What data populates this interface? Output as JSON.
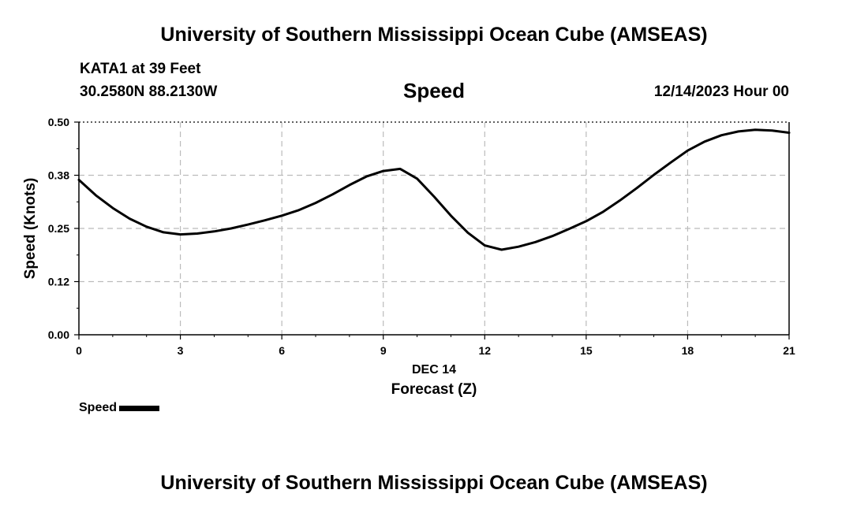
{
  "header": {
    "title": "University of Southern Mississippi Ocean Cube (AMSEAS)",
    "station": "KATA1 at 39 Feet",
    "coords": "30.2580N  88.2130W",
    "variable": "Speed",
    "datetime": "12/14/2023 Hour 00"
  },
  "footer": {
    "title": "University of Southern Mississippi Ocean Cube (AMSEAS)"
  },
  "chart_data": {
    "type": "line",
    "title": "Speed",
    "xlabel": "Forecast (Z)",
    "xlabel_date": "DEC 14",
    "ylabel": "Speed (Knots)",
    "xlim": [
      0,
      21
    ],
    "ylim": [
      0,
      0.5
    ],
    "xticks": [
      0,
      3,
      6,
      9,
      12,
      15,
      18,
      21
    ],
    "yticks": [
      0,
      0.125,
      0.25,
      0.375,
      0.5
    ],
    "ytick_labels": [
      "0.00",
      "0.12",
      "0.25",
      "0.38",
      "0.50"
    ],
    "grid": true,
    "legend": "bottom-left",
    "series": [
      {
        "name": "Speed",
        "color": "#000000",
        "x": [
          0,
          0.5,
          1,
          1.5,
          2,
          2.5,
          3,
          3.5,
          4,
          4.5,
          5,
          5.5,
          6,
          6.5,
          7,
          7.5,
          8,
          8.5,
          9,
          9.5,
          10,
          10.5,
          11,
          11.5,
          12,
          12.5,
          13,
          13.5,
          14,
          14.5,
          15,
          15.5,
          16,
          16.5,
          17,
          17.5,
          18,
          18.5,
          19,
          19.5,
          20,
          20.5,
          21
        ],
        "y": [
          0.364,
          0.328,
          0.298,
          0.273,
          0.254,
          0.241,
          0.236,
          0.238,
          0.243,
          0.25,
          0.259,
          0.269,
          0.28,
          0.293,
          0.31,
          0.33,
          0.352,
          0.372,
          0.385,
          0.39,
          0.367,
          0.325,
          0.28,
          0.24,
          0.21,
          0.2,
          0.207,
          0.218,
          0.232,
          0.249,
          0.267,
          0.289,
          0.316,
          0.345,
          0.376,
          0.405,
          0.433,
          0.454,
          0.469,
          0.478,
          0.482,
          0.48,
          0.475
        ]
      }
    ]
  }
}
